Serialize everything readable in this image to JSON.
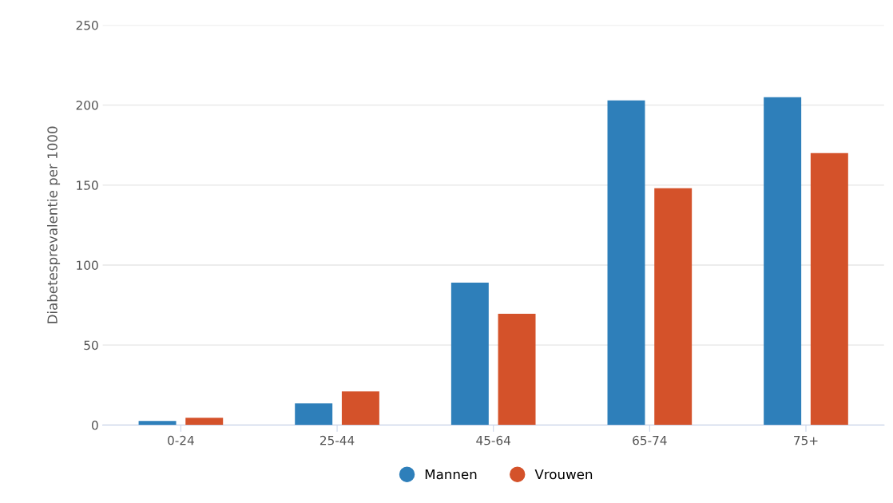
{
  "chart_data": {
    "type": "bar",
    "ylabel": "Diabetesprevalentie per 1000",
    "categories": [
      "0-24",
      "25-44",
      "45-64",
      "65-74",
      "75+"
    ],
    "series": [
      {
        "name": "Mannen",
        "color": "#2e7fba",
        "values": [
          2.5,
          13.5,
          89,
          203,
          205
        ]
      },
      {
        "name": "Vrouwen",
        "color": "#d4522a",
        "values": [
          4.5,
          21,
          69.5,
          148,
          170
        ]
      }
    ],
    "ylim": [
      0,
      250
    ],
    "yticks": [
      0,
      50,
      100,
      150,
      200,
      250
    ],
    "grid": "y",
    "legend": "bottom"
  }
}
